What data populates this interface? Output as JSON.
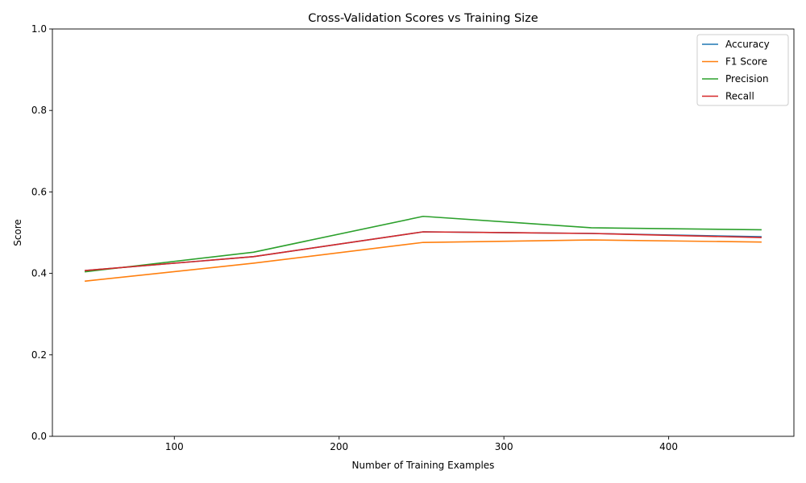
{
  "chart_data": {
    "type": "line",
    "title": "Cross-Validation Scores vs Training Size",
    "xlabel": "Number of Training Examples",
    "ylabel": "Score",
    "x": [
      46,
      148,
      251,
      353,
      456
    ],
    "xlim": [
      26,
      476
    ],
    "ylim": [
      0,
      1
    ],
    "xticks": [
      100,
      200,
      300,
      400
    ],
    "yticks": [
      0.0,
      0.2,
      0.4,
      0.6,
      0.8,
      1.0
    ],
    "xtick_labels": [
      "100",
      "200",
      "300",
      "400"
    ],
    "ytick_labels": [
      "0.0",
      "0.2",
      "0.4",
      "0.6",
      "0.8",
      "1.0"
    ],
    "grid": false,
    "legend_position": "top-right",
    "series": [
      {
        "name": "Accuracy",
        "color": "#1f77b4",
        "values": [
          0.407,
          0.441,
          0.502,
          0.498,
          0.49
        ]
      },
      {
        "name": "F1 Score",
        "color": "#ff7f0e",
        "values": [
          0.381,
          0.425,
          0.476,
          0.482,
          0.477
        ]
      },
      {
        "name": "Precision",
        "color": "#2ca02c",
        "values": [
          0.404,
          0.452,
          0.54,
          0.512,
          0.507
        ]
      },
      {
        "name": "Recall",
        "color": "#d62728",
        "values": [
          0.407,
          0.441,
          0.502,
          0.498,
          0.488
        ]
      }
    ]
  }
}
